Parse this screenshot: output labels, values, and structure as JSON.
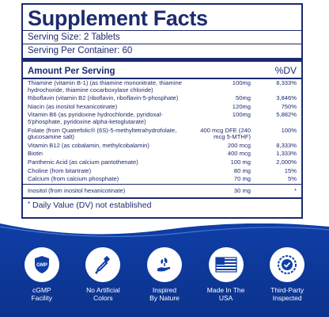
{
  "facts": {
    "title": "Supplement Facts",
    "serving_size": "Serving Size: 2 Tablets",
    "servings_per_container": "Serving Per Container: 60",
    "amount_header": "Amount Per Serving",
    "dv_header": "%DV",
    "rows": [
      {
        "name": "Thiamine (vitamin B-1) (as thiamine mononitrate, thiamine hydrochoride, thiamine cocarboxylase chloride)",
        "amount": "100mg",
        "dv": "8,333%"
      },
      {
        "name": "Riboflavin (vitamin B2 (riboflavin, riboflavin-5-phosphate)",
        "amount": "50mg",
        "dv": "3,846%"
      },
      {
        "name": "Niacin (as inositol hexanicotinate)",
        "amount": "120mg",
        "dv": "750%"
      },
      {
        "name": "Vitamin B6 (as pyridoxine hydrochloride, pyridoxal-5'phosphate, pyridoxine alpha-ketoglutarate)",
        "amount": "100mg",
        "dv": "5,882%"
      },
      {
        "name": "Folate (from Quatrefolic® (6S)-5-methyltetrahydrofolate, glucosamine salt)",
        "amount": "400 mcg DFE (240 mcg 5-MTHF)",
        "dv": "100%"
      },
      {
        "name": "Vitamin B12 (as cobalamin, methylcobalamin)",
        "amount": "200 mcg",
        "dv": "8,333%"
      },
      {
        "name": "Biotin",
        "amount": "400 mcg",
        "dv": "1,333%"
      },
      {
        "name": "Panthenic Acid (as calcium pantothenate)",
        "amount": "100 mg",
        "dv": "2,000%"
      },
      {
        "name": "Choline (from bitartrate)",
        "amount": "80 mg",
        "dv": "15%"
      },
      {
        "name": "Calcium (from calcium phosphate)",
        "amount": "70 mg",
        "dv": "5%"
      }
    ],
    "inositol": {
      "name": "Inositol (from inositol hexanicotinate)",
      "amount": "30 mg",
      "dv": "*"
    },
    "footnote_star": "*",
    "footnote": "Daily Value (DV) not established"
  },
  "badges": [
    {
      "icon": "gmp-shield-icon",
      "line1": "cGMP",
      "line2": "Facility"
    },
    {
      "icon": "dropper-icon",
      "line1": "No Artificial",
      "line2": "Colors"
    },
    {
      "icon": "leaf-hand-icon",
      "line1": "Inspired",
      "line2": "By Nature"
    },
    {
      "icon": "usa-flag-icon",
      "line1": "Made In The",
      "line2": "USA"
    },
    {
      "icon": "check-seal-icon",
      "line1": "Third-Party",
      "line2": "Inspected"
    }
  ],
  "colors": {
    "navy": "#1d2b6e",
    "blue": "#0f3ea6",
    "white": "#ffffff"
  }
}
